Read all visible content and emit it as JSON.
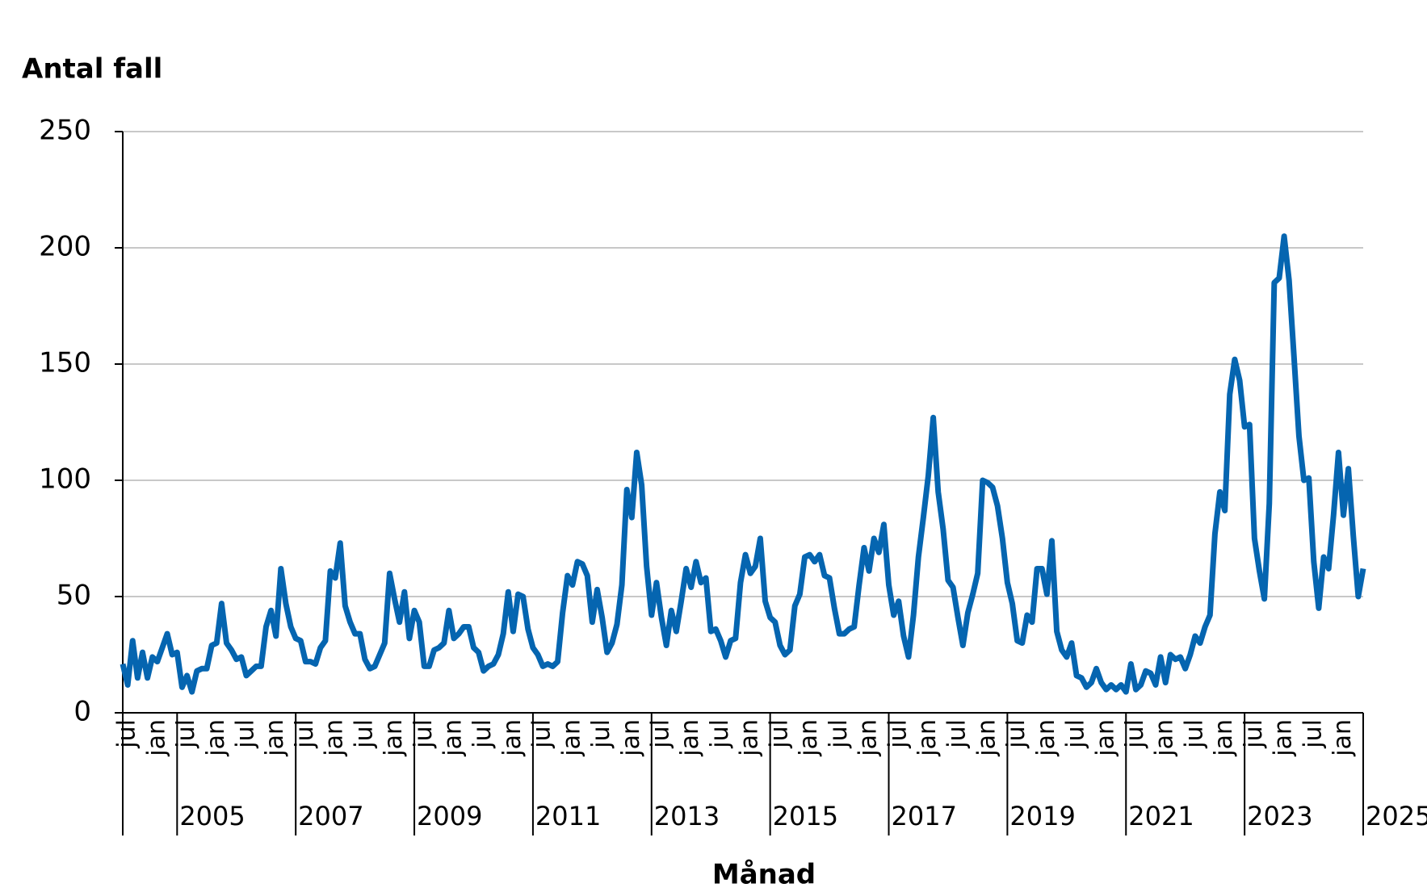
{
  "chart_data": {
    "type": "line",
    "y_label": "Antal fall",
    "x_label": "Månad",
    "ylim": [
      0,
      250
    ],
    "yticks": [
      0,
      50,
      100,
      150,
      200,
      250
    ],
    "grid": true,
    "categories": [
      null,
      "jul",
      null,
      null,
      null,
      null,
      null,
      "jan",
      null,
      null,
      null,
      null,
      null,
      "jul",
      null,
      null,
      null,
      null,
      null,
      "jan",
      null,
      null,
      null,
      null,
      null,
      "jul",
      null,
      null,
      null,
      null,
      null,
      "jan",
      null,
      null,
      null,
      null,
      null,
      "jul",
      null,
      null,
      null,
      null,
      null,
      "jan",
      null,
      null,
      null,
      null,
      null,
      "jul",
      null,
      null,
      null,
      null,
      null,
      "jan",
      null,
      null,
      null,
      null,
      null,
      "jul",
      null,
      null,
      null,
      null,
      null,
      "jan",
      null,
      null,
      null,
      null,
      null,
      "jul",
      null,
      null,
      null,
      null,
      null,
      "jan",
      null,
      null,
      null,
      null,
      null,
      "jul",
      null,
      null,
      null,
      null,
      null,
      "jan",
      null,
      null,
      null,
      null,
      null,
      "jul",
      null,
      null,
      null,
      null,
      null,
      "jan",
      null,
      null,
      null,
      null,
      null,
      "jul",
      null,
      null,
      null,
      null,
      null,
      "jan",
      null,
      null,
      null,
      null,
      null,
      "jul",
      null,
      null,
      null,
      null,
      null,
      "jan",
      null,
      null,
      null,
      null,
      null,
      "jul",
      null,
      null,
      null,
      null,
      null,
      "jan",
      null,
      null,
      null,
      null,
      null,
      "jul",
      null,
      null,
      null,
      null,
      null,
      "jan",
      null,
      null,
      null,
      null,
      null,
      "jul",
      null,
      null,
      null,
      null,
      null,
      "jan",
      null,
      null,
      null,
      null,
      null,
      "jul",
      null,
      null,
      null,
      null,
      null,
      "jan",
      null,
      null,
      null,
      null,
      null,
      "jul",
      null,
      null,
      null,
      null,
      null,
      "jan",
      null,
      null,
      null,
      null,
      null,
      "jul",
      null,
      null,
      null,
      null,
      null,
      "jan",
      null,
      null,
      null,
      null,
      null,
      "jul",
      null,
      null,
      null,
      null,
      null,
      "jan",
      null,
      null,
      null,
      null,
      null,
      "jul",
      null,
      null,
      null,
      null,
      null,
      "jan",
      null,
      null,
      null,
      null,
      null,
      "jul",
      null,
      null,
      null,
      null,
      null,
      "jan",
      null,
      null,
      null,
      null,
      null,
      "jul",
      null,
      null,
      null,
      null,
      null,
      "jan",
      null,
      null,
      null,
      null
    ],
    "category_groups": [
      null,
      null,
      null,
      null,
      null,
      null,
      null,
      null,
      null,
      null,
      null,
      "2005",
      null,
      null,
      null,
      null,
      null,
      null,
      null,
      null,
      null,
      null,
      null,
      null,
      null,
      null,
      null,
      null,
      null,
      null,
      null,
      null,
      null,
      null,
      null,
      "2007",
      null,
      null,
      null,
      null,
      null,
      null,
      null,
      null,
      null,
      null,
      null,
      null,
      null,
      null,
      null,
      null,
      null,
      null,
      null,
      null,
      null,
      null,
      null,
      "2009",
      null,
      null,
      null,
      null,
      null,
      null,
      null,
      null,
      null,
      null,
      null,
      null,
      null,
      null,
      null,
      null,
      null,
      null,
      null,
      null,
      null,
      null,
      null,
      "2011",
      null,
      null,
      null,
      null,
      null,
      null,
      null,
      null,
      null,
      null,
      null,
      null,
      null,
      null,
      null,
      null,
      null,
      null,
      null,
      null,
      null,
      null,
      null,
      "2013",
      null,
      null,
      null,
      null,
      null,
      null,
      null,
      null,
      null,
      null,
      null,
      null,
      null,
      null,
      null,
      null,
      null,
      null,
      null,
      null,
      null,
      null,
      null,
      "2015",
      null,
      null,
      null,
      null,
      null,
      null,
      null,
      null,
      null,
      null,
      null,
      null,
      null,
      null,
      null,
      null,
      null,
      null,
      null,
      null,
      null,
      null,
      null,
      "2017",
      null,
      null,
      null,
      null,
      null,
      null,
      null,
      null,
      null,
      null,
      null,
      null,
      null,
      null,
      null,
      null,
      null,
      null,
      null,
      null,
      null,
      null,
      null,
      "2019",
      null,
      null,
      null,
      null,
      null,
      null,
      null,
      null,
      null,
      null,
      null,
      null,
      null,
      null,
      null,
      null,
      null,
      null,
      null,
      null,
      null,
      null,
      null,
      "2021",
      null,
      null,
      null,
      null,
      null,
      null,
      null,
      null,
      null,
      null,
      null,
      null,
      null,
      null,
      null,
      null,
      null,
      null,
      null,
      null,
      null,
      null,
      null,
      "2023",
      null,
      null,
      null,
      null,
      null,
      null,
      null,
      null,
      null,
      null,
      null,
      null,
      null,
      null,
      null,
      null,
      null,
      null,
      null,
      null,
      null,
      null,
      null,
      "2025"
    ],
    "color": "#0565b0",
    "values": [
      21,
      12,
      31,
      15,
      26,
      15,
      24,
      22,
      28,
      34,
      25,
      26,
      11,
      16,
      9,
      18,
      19,
      19,
      29,
      30,
      47,
      30,
      27,
      23,
      24,
      16,
      18,
      20,
      20,
      37,
      44,
      33,
      62,
      47,
      37,
      32,
      31,
      22,
      22,
      21,
      28,
      31,
      61,
      58,
      73,
      46,
      39,
      34,
      34,
      23,
      19,
      20,
      25,
      30,
      60,
      49,
      39,
      52,
      32,
      44,
      39,
      20,
      20,
      27,
      28,
      30,
      44,
      32,
      34,
      37,
      37,
      28,
      26,
      18,
      20,
      21,
      25,
      34,
      52,
      35,
      51,
      50,
      36,
      28,
      25,
      20,
      21,
      20,
      22,
      43,
      59,
      55,
      65,
      64,
      59,
      39,
      53,
      41,
      26,
      30,
      38,
      55,
      96,
      84,
      112,
      98,
      63,
      42,
      56,
      41,
      29,
      44,
      35,
      48,
      62,
      54,
      65,
      56,
      58,
      35,
      36,
      31,
      24,
      31,
      32,
      56,
      68,
      60,
      63,
      75,
      48,
      41,
      39,
      29,
      25,
      27,
      46,
      51,
      67,
      68,
      65,
      68,
      59,
      58,
      45,
      34,
      34,
      36,
      37,
      55,
      71,
      61,
      75,
      69,
      81,
      55,
      42,
      48,
      33,
      24,
      42,
      67,
      84,
      102,
      127,
      95,
      79,
      57,
      54,
      41,
      29,
      43,
      51,
      60,
      100,
      99,
      97,
      89,
      75,
      56,
      47,
      31,
      30,
      42,
      39,
      62,
      62,
      51,
      74,
      35,
      27,
      24,
      30,
      16,
      15,
      11,
      13,
      19,
      13,
      10,
      12,
      10,
      12,
      9,
      21,
      10,
      12,
      18,
      17,
      12,
      24,
      13,
      25,
      23,
      24,
      19,
      25,
      33,
      30,
      37,
      42,
      77,
      95,
      87,
      137,
      152,
      143,
      123,
      124,
      75,
      61,
      49,
      90,
      185,
      187,
      205,
      186,
      153,
      119,
      100,
      101,
      65,
      45,
      67,
      62,
      85,
      112,
      85,
      105,
      76,
      50,
      62
    ]
  }
}
